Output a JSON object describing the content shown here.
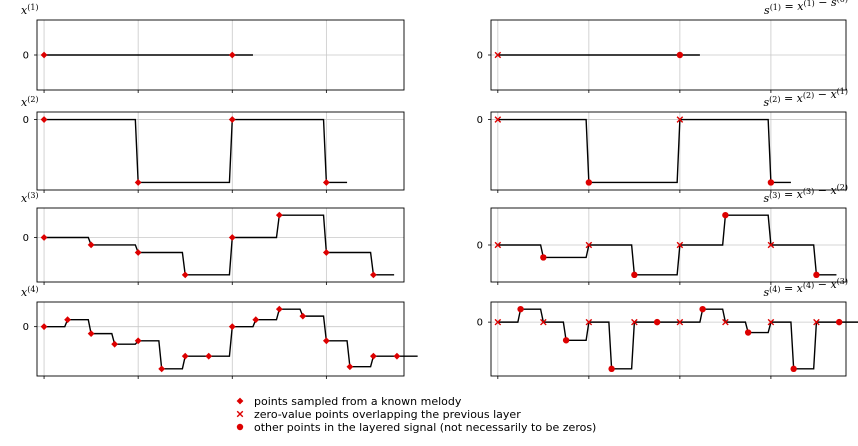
{
  "chart_data": {
    "type": "line",
    "style": {
      "line_color": "#000000",
      "marker_color": "#dd0000",
      "grid": true,
      "grid_color": "#c8c8c8"
    },
    "legend": {
      "placement": "bottom-center",
      "entries": [
        {
          "marker": "diamond",
          "label": "points sampled from a known melody"
        },
        {
          "marker": "x",
          "label": "zero-value points overlapping the previous layer"
        },
        {
          "marker": "dot",
          "label": "other points in the layered signal (not necessarily to be zeros)"
        }
      ]
    },
    "panels": [
      {
        "title": "x^(1)",
        "title_base": "x",
        "title_sup": "(1)",
        "column": "left",
        "row": 0,
        "yticks": [
          0
        ],
        "ytick_labels": [
          "0"
        ],
        "points": [
          {
            "x": 0,
            "y": 0,
            "m": "d"
          },
          {
            "x": 8,
            "y": 0,
            "m": "d"
          }
        ]
      },
      {
        "title": "s^(1) = x^(1) − s^(0)",
        "title_base": "s",
        "title_sup": "(1)",
        "title_rest": " = x",
        "title_sup2": "(1)",
        "title_rest2": " − s",
        "title_sup3": "(0)",
        "column": "right",
        "row": 0,
        "yticks": [
          0
        ],
        "ytick_labels": [
          "0"
        ],
        "points": [
          {
            "x": 0,
            "y": 0,
            "m": "x"
          },
          {
            "x": 8,
            "y": 0,
            "m": "o"
          }
        ]
      },
      {
        "title": "x^(2)",
        "title_base": "x",
        "title_sup": "(2)",
        "column": "left",
        "row": 1,
        "yticks": [
          0
        ],
        "ytick_labels": [
          "0"
        ],
        "points": [
          {
            "x": 0,
            "y": 0,
            "m": "d"
          },
          {
            "x": 4,
            "y": -1,
            "m": "d"
          },
          {
            "x": 8,
            "y": 0,
            "m": "d"
          },
          {
            "x": 12,
            "y": -1,
            "m": "d"
          }
        ]
      },
      {
        "title": "s^(2) = x^(2) − x^(1)",
        "title_base": "s",
        "title_sup": "(2)",
        "title_rest": " = x",
        "title_sup2": "(2)",
        "title_rest2": " − x",
        "title_sup3": "(1)",
        "column": "right",
        "row": 1,
        "yticks": [
          0
        ],
        "ytick_labels": [
          "0"
        ],
        "points": [
          {
            "x": 0,
            "y": 0,
            "m": "x"
          },
          {
            "x": 4,
            "y": -1,
            "m": "o"
          },
          {
            "x": 8,
            "y": 0,
            "m": "x"
          },
          {
            "x": 12,
            "y": -1,
            "m": "o"
          }
        ]
      },
      {
        "title": "x^(3)",
        "title_base": "x",
        "title_sup": "(3)",
        "column": "left",
        "row": 2,
        "yticks": [
          0
        ],
        "ytick_labels": [
          "0"
        ],
        "points": [
          {
            "x": 0,
            "y": 0,
            "m": "d"
          },
          {
            "x": 2,
            "y": -0.33,
            "m": "d"
          },
          {
            "x": 4,
            "y": -0.67,
            "m": "d"
          },
          {
            "x": 6,
            "y": -1.67,
            "m": "d"
          },
          {
            "x": 8,
            "y": 0,
            "m": "d"
          },
          {
            "x": 10,
            "y": 1,
            "m": "d"
          },
          {
            "x": 12,
            "y": -0.67,
            "m": "d"
          },
          {
            "x": 14,
            "y": -1.67,
            "m": "d"
          }
        ]
      },
      {
        "title": "s^(3) = x^(3) − x^(2)",
        "title_base": "s",
        "title_sup": "(3)",
        "title_rest": " = x",
        "title_sup2": "(3)",
        "title_rest2": " − x",
        "title_sup3": "(2)",
        "column": "right",
        "row": 2,
        "yticks": [
          0
        ],
        "ytick_labels": [
          "0"
        ],
        "points": [
          {
            "x": 0,
            "y": 0,
            "m": "x"
          },
          {
            "x": 2,
            "y": -0.5,
            "m": "o"
          },
          {
            "x": 4,
            "y": 0,
            "m": "x"
          },
          {
            "x": 6,
            "y": -1.2,
            "m": "o"
          },
          {
            "x": 8,
            "y": 0,
            "m": "x"
          },
          {
            "x": 10,
            "y": 1.2,
            "m": "o"
          },
          {
            "x": 12,
            "y": 0,
            "m": "x"
          },
          {
            "x": 14,
            "y": -1.2,
            "m": "o"
          }
        ]
      },
      {
        "title": "x^(4)",
        "title_base": "x",
        "title_sup": "(4)",
        "column": "left",
        "row": 3,
        "yticks": [
          0
        ],
        "ytick_labels": [
          "0"
        ],
        "points": [
          {
            "x": 0,
            "y": 0,
            "m": "d"
          },
          {
            "x": 1,
            "y": 0.33,
            "m": "d"
          },
          {
            "x": 2,
            "y": -0.33,
            "m": "d"
          },
          {
            "x": 3,
            "y": -0.83,
            "m": "d"
          },
          {
            "x": 4,
            "y": -0.67,
            "m": "d"
          },
          {
            "x": 5,
            "y": -2,
            "m": "d"
          },
          {
            "x": 6,
            "y": -1.4,
            "m": "d"
          },
          {
            "x": 7,
            "y": -1.4,
            "m": "d"
          },
          {
            "x": 8,
            "y": 0,
            "m": "d"
          },
          {
            "x": 9,
            "y": 0.33,
            "m": "d"
          },
          {
            "x": 10,
            "y": 0.83,
            "m": "d"
          },
          {
            "x": 11,
            "y": 0.5,
            "m": "d"
          },
          {
            "x": 12,
            "y": -0.67,
            "m": "d"
          },
          {
            "x": 13,
            "y": -1.9,
            "m": "d"
          },
          {
            "x": 14,
            "y": -1.4,
            "m": "d"
          },
          {
            "x": 15,
            "y": -1.4,
            "m": "d"
          }
        ]
      },
      {
        "title": "s^(4) = x^(4) − x^(3)",
        "title_base": "s",
        "title_sup": "(4)",
        "title_rest": " = x",
        "title_sup2": "(4)",
        "title_rest2": " − x",
        "title_sup3": "(3)",
        "column": "right",
        "row": 3,
        "yticks": [
          0
        ],
        "ytick_labels": [
          "0"
        ],
        "points": [
          {
            "x": 0,
            "y": 0,
            "m": "x"
          },
          {
            "x": 1,
            "y": 0.5,
            "m": "o"
          },
          {
            "x": 2,
            "y": 0,
            "m": "x"
          },
          {
            "x": 3,
            "y": -0.7,
            "m": "o"
          },
          {
            "x": 4,
            "y": 0,
            "m": "x"
          },
          {
            "x": 5,
            "y": -1.8,
            "m": "o"
          },
          {
            "x": 6,
            "y": 0,
            "m": "x"
          },
          {
            "x": 7,
            "y": 0,
            "m": "o"
          },
          {
            "x": 8,
            "y": 0,
            "m": "x"
          },
          {
            "x": 9,
            "y": 0.5,
            "m": "o"
          },
          {
            "x": 10,
            "y": 0,
            "m": "x"
          },
          {
            "x": 11,
            "y": -0.4,
            "m": "o"
          },
          {
            "x": 12,
            "y": 0,
            "m": "x"
          },
          {
            "x": 13,
            "y": -1.8,
            "m": "o"
          },
          {
            "x": 14,
            "y": 0,
            "m": "x"
          },
          {
            "x": 15,
            "y": 0,
            "m": "o"
          }
        ]
      }
    ]
  }
}
